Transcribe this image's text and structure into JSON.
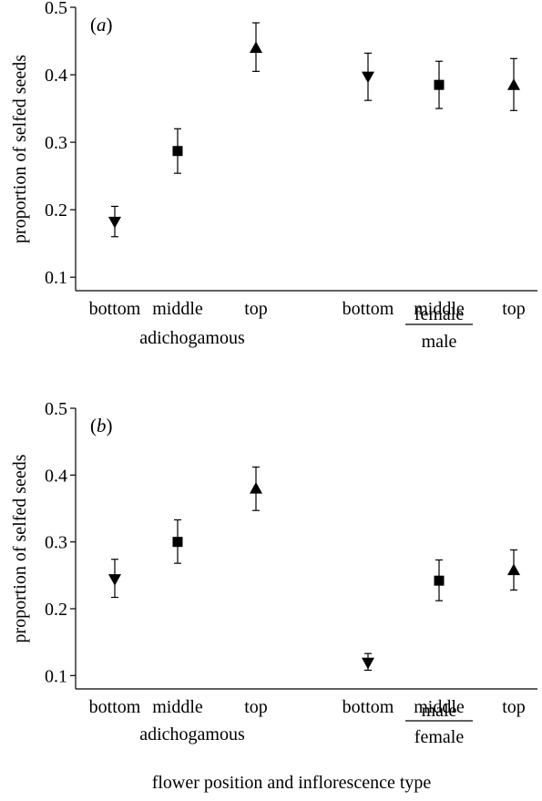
{
  "chart_data": [
    {
      "type": "scatter",
      "panel_label": "a",
      "ylabel": "proportion of selfed seeds",
      "ylim": [
        0.08,
        0.5
      ],
      "yticks": [
        0.1,
        0.2,
        0.3,
        0.4,
        0.5
      ],
      "ytick_labels": [
        "0.1",
        "0.2",
        "0.3",
        "0.4",
        "0.5"
      ],
      "categories": [
        "bottom",
        "middle",
        "top",
        "bottom",
        "middle",
        "top"
      ],
      "groups": [
        {
          "label": "adichogamous"
        },
        {
          "numerator": "female",
          "denominator": "male"
        }
      ],
      "points": [
        {
          "category": "bottom",
          "group": 0,
          "marker": "triangle-down",
          "y": 0.182,
          "err_low": 0.16,
          "err_high": 0.205
        },
        {
          "category": "middle",
          "group": 0,
          "marker": "square",
          "y": 0.287,
          "err_low": 0.254,
          "err_high": 0.32
        },
        {
          "category": "top",
          "group": 0,
          "marker": "triangle-up",
          "y": 0.44,
          "err_low": 0.405,
          "err_high": 0.477
        },
        {
          "category": "bottom",
          "group": 1,
          "marker": "triangle-down",
          "y": 0.397,
          "err_low": 0.362,
          "err_high": 0.432
        },
        {
          "category": "middle",
          "group": 1,
          "marker": "square",
          "y": 0.385,
          "err_low": 0.35,
          "err_high": 0.42
        },
        {
          "category": "top",
          "group": 1,
          "marker": "triangle-up",
          "y": 0.385,
          "err_low": 0.347,
          "err_high": 0.424
        }
      ],
      "grid": false,
      "legend": "none"
    },
    {
      "type": "scatter",
      "panel_label": "b",
      "ylabel": "proportion of selfed seeds",
      "ylim": [
        0.08,
        0.5
      ],
      "yticks": [
        0.1,
        0.2,
        0.3,
        0.4,
        0.5
      ],
      "ytick_labels": [
        "0.1",
        "0.2",
        "0.3",
        "0.4",
        "0.5"
      ],
      "categories": [
        "bottom",
        "middle",
        "top",
        "bottom",
        "middle",
        "top"
      ],
      "groups": [
        {
          "label": "adichogamous"
        },
        {
          "numerator": "male",
          "denominator": "female"
        }
      ],
      "points": [
        {
          "category": "bottom",
          "group": 0,
          "marker": "triangle-down",
          "y": 0.244,
          "err_low": 0.217,
          "err_high": 0.274
        },
        {
          "category": "middle",
          "group": 0,
          "marker": "square",
          "y": 0.3,
          "err_low": 0.268,
          "err_high": 0.333
        },
        {
          "category": "top",
          "group": 0,
          "marker": "triangle-up",
          "y": 0.38,
          "err_low": 0.347,
          "err_high": 0.412
        },
        {
          "category": "bottom",
          "group": 1,
          "marker": "triangle-down",
          "y": 0.119,
          "err_low": 0.108,
          "err_high": 0.133
        },
        {
          "category": "middle",
          "group": 1,
          "marker": "square",
          "y": 0.242,
          "err_low": 0.212,
          "err_high": 0.273
        },
        {
          "category": "top",
          "group": 1,
          "marker": "triangle-up",
          "y": 0.258,
          "err_low": 0.228,
          "err_high": 0.288
        }
      ],
      "grid": false,
      "legend": "none"
    }
  ],
  "figure": {
    "xlabel": "flower position and inflorescence type"
  },
  "colors": {
    "ink": "#000000",
    "background": "#ffffff"
  }
}
